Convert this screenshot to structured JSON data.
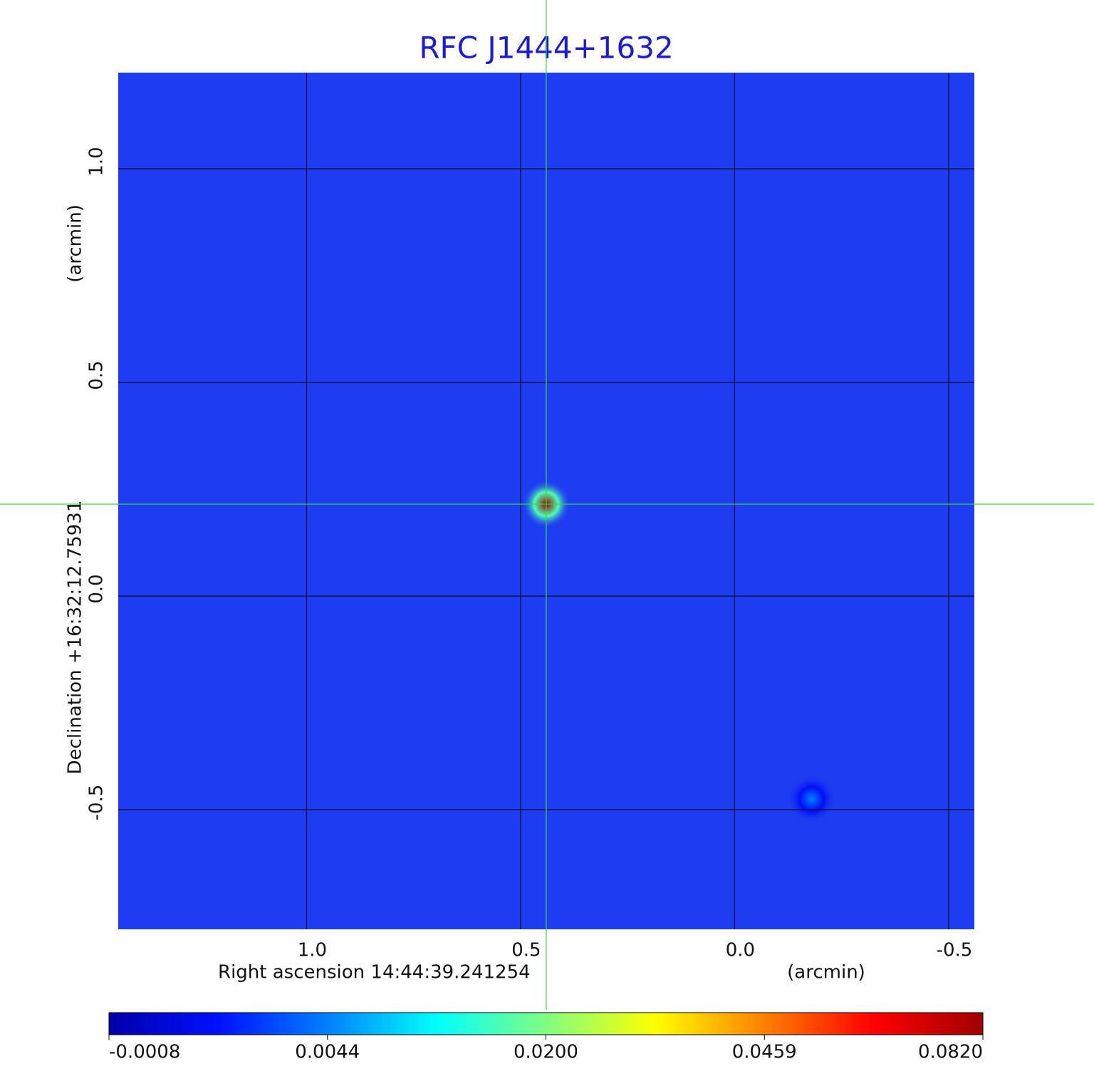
{
  "chart_data": {
    "type": "image",
    "title": "RFC J1444+1632",
    "x_label": "Right ascension  14:44:39.241254",
    "x_unit": "(arcmin)",
    "y_label": "Declination  +16:32:12.75931",
    "y_unit": "(arcmin)",
    "xlim": [
      1.44,
      -0.56
    ],
    "ylim": [
      -0.78,
      1.225
    ],
    "xticks": [
      {
        "value": 1,
        "label": "1.0"
      },
      0.5,
      {
        "value": 0,
        "label": "0.0"
      },
      -0.5
    ],
    "yticks": [
      {
        "value": 1,
        "label": "1.0"
      },
      0.5,
      {
        "value": 0,
        "label": "0.0"
      },
      -0.5
    ],
    "grid": true,
    "background": "#1e3cf2",
    "sources": [
      {
        "x": 0.44,
        "y": 0.215,
        "peak": 0.082
      },
      {
        "x": -0.18,
        "y": -0.475,
        "peak": 0.0044
      }
    ],
    "crosshair": {
      "x": 0.44,
      "y": 0.215,
      "color": "#33dd33"
    },
    "colorbar": {
      "ticks": [
        -0.0008,
        0.0044,
        {
          "value": 0.02,
          "label": "0.0200"
        },
        0.0459,
        {
          "value": 0.082,
          "label": "0.0820"
        }
      ],
      "colors": [
        "#0000a8",
        "#0010ff",
        "#0080ff",
        "#00ffff",
        "#80ff80",
        "#ffff00",
        "#ff8000",
        "#ff0000",
        "#a00000"
      ]
    }
  }
}
